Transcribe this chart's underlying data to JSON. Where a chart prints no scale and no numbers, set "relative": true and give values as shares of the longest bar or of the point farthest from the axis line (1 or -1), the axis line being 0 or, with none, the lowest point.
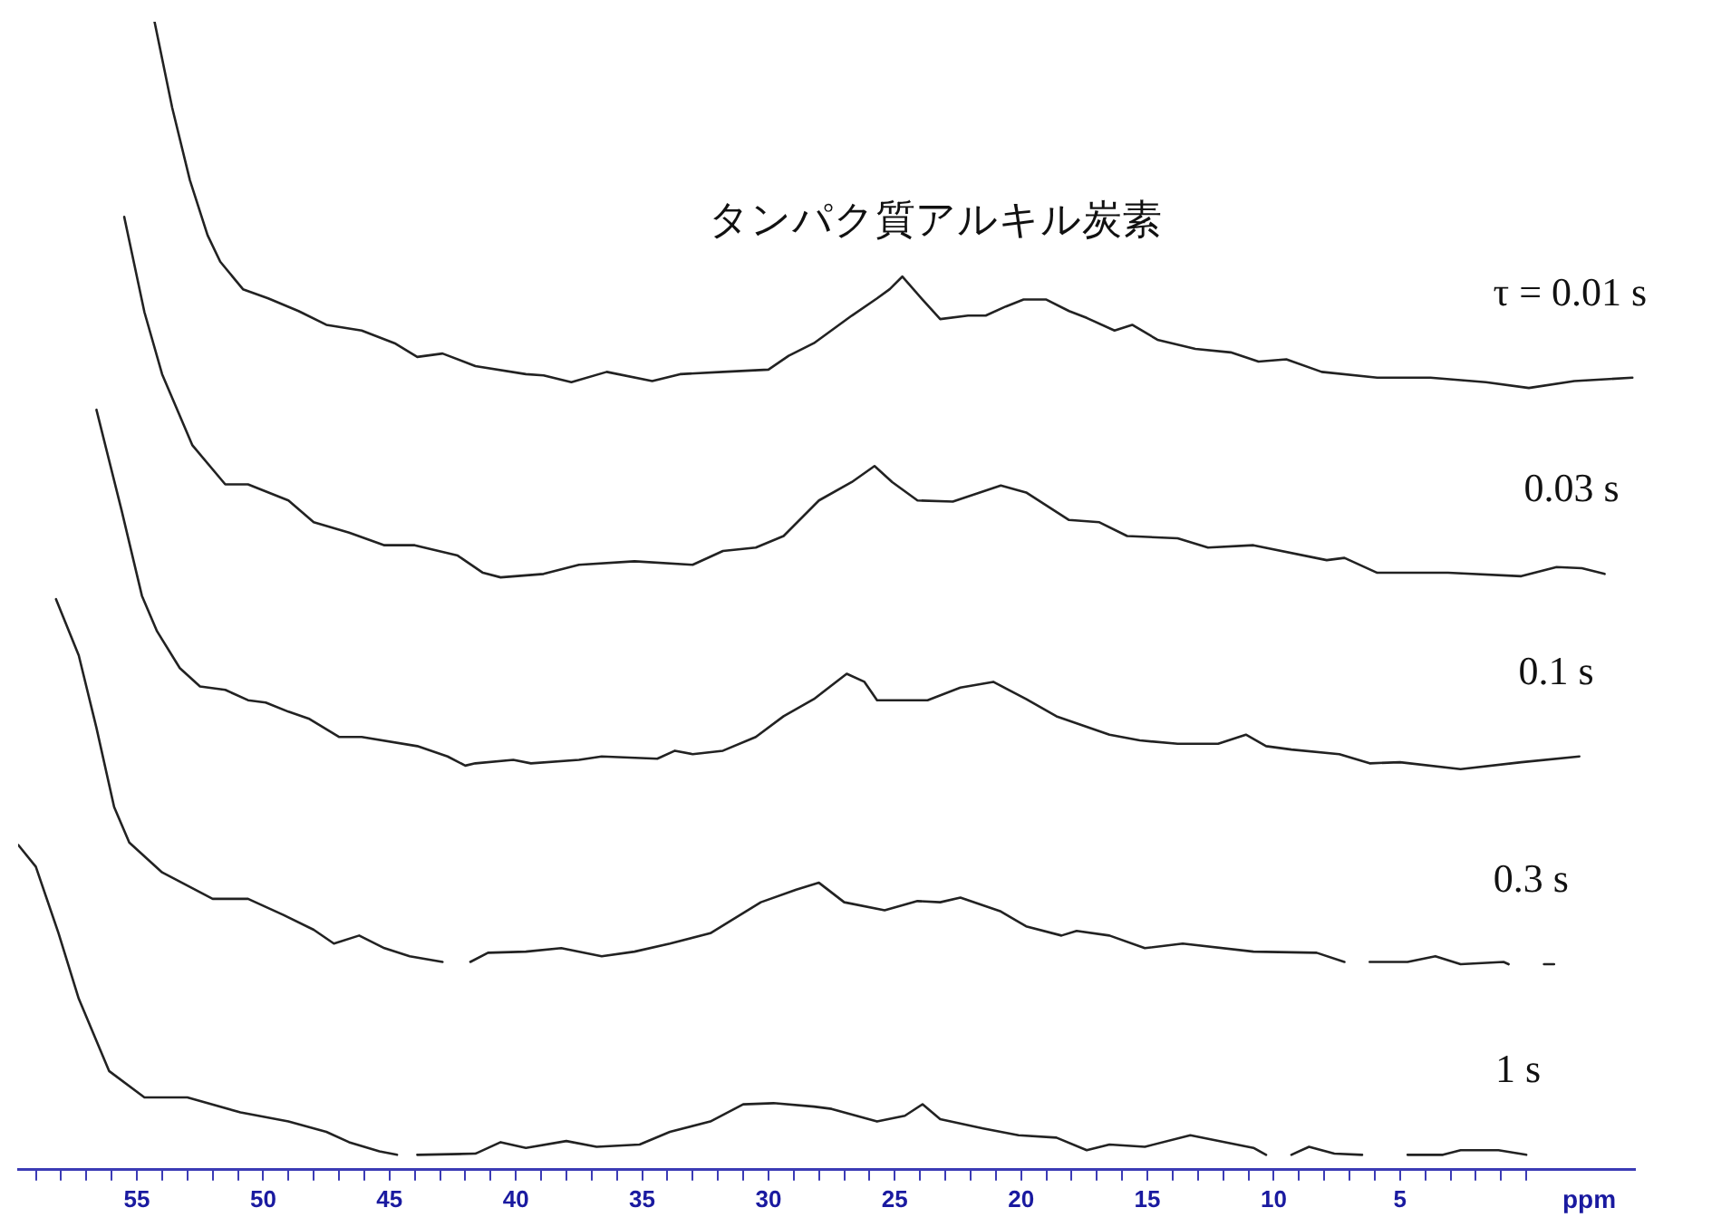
{
  "chart_data": {
    "type": "line",
    "relative": true,
    "xlabel": "ppm",
    "xlim": [
      59.7,
      -4.3
    ],
    "xticks": [
      {
        "value": 59,
        "label": null
      },
      {
        "value": 58,
        "label": null
      },
      {
        "value": 57,
        "label": null
      },
      {
        "value": 56,
        "label": null
      },
      55,
      {
        "value": 54,
        "label": null
      },
      {
        "value": 53,
        "label": null
      },
      {
        "value": 52,
        "label": null
      },
      {
        "value": 51,
        "label": null
      },
      50,
      {
        "value": 49,
        "label": null
      },
      {
        "value": 48,
        "label": null
      },
      {
        "value": 47,
        "label": null
      },
      {
        "value": 46,
        "label": null
      },
      45,
      {
        "value": 44,
        "label": null
      },
      {
        "value": 43,
        "label": null
      },
      {
        "value": 42,
        "label": null
      },
      {
        "value": 41,
        "label": null
      },
      40,
      {
        "value": 39,
        "label": null
      },
      {
        "value": 38,
        "label": null
      },
      {
        "value": 37,
        "label": null
      },
      {
        "value": 36,
        "label": null
      },
      35,
      {
        "value": 34,
        "label": null
      },
      {
        "value": 33,
        "label": null
      },
      {
        "value": 32,
        "label": null
      },
      {
        "value": 31,
        "label": null
      },
      30,
      {
        "value": 29,
        "label": null
      },
      {
        "value": 28,
        "label": null
      },
      {
        "value": 27,
        "label": null
      },
      {
        "value": 26,
        "label": null
      },
      25,
      {
        "value": 24,
        "label": null
      },
      {
        "value": 23,
        "label": null
      },
      {
        "value": 22,
        "label": null
      },
      {
        "value": 21,
        "label": null
      },
      20,
      {
        "value": 19,
        "label": null
      },
      {
        "value": 18,
        "label": null
      },
      {
        "value": 17,
        "label": null
      },
      {
        "value": 16,
        "label": null
      },
      15,
      {
        "value": 14,
        "label": null
      },
      {
        "value": 13,
        "label": null
      },
      {
        "value": 12,
        "label": null
      },
      {
        "value": 11,
        "label": null
      },
      10,
      {
        "value": 9,
        "label": null
      },
      {
        "value": 8,
        "label": null
      },
      {
        "value": 7,
        "label": null
      },
      {
        "value": 6,
        "label": null
      },
      5,
      {
        "value": 4,
        "label": null
      },
      {
        "value": 3,
        "label": null
      },
      {
        "value": 2,
        "label": null
      },
      {
        "value": 1,
        "label": null
      },
      {
        "value": 0,
        "label": null
      }
    ],
    "annotations": [
      {
        "text": "タンパク質アルキル炭素",
        "x": 24.7,
        "y": 0.778
      }
    ],
    "series": [
      {
        "name": "τ = 0.01 s",
        "color": "#222222",
        "x": [
          54.3,
          53.6,
          52.9,
          52.2,
          51.7,
          50.8,
          49.8,
          48.6,
          47.5,
          46.1,
          44.8,
          43.9,
          42.9,
          41.6,
          39.6,
          38.9,
          37.8,
          36.4,
          34.6,
          33.5,
          31.8,
          30.0,
          29.2,
          28.2,
          26.7,
          25.7,
          25.2,
          24.7,
          23.9,
          23.2,
          22.1,
          21.4,
          20.6,
          19.9,
          19.0,
          18.1,
          17.4,
          16.3,
          15.6,
          14.6,
          13.1,
          11.7,
          10.6,
          9.5,
          8.1,
          5.9,
          3.8,
          1.6,
          -0.1,
          -1.9,
          -4.2
        ],
        "values": [
          1,
          0.925,
          0.862,
          0.814,
          0.791,
          0.767,
          0.759,
          0.748,
          0.736,
          0.731,
          0.72,
          0.708,
          0.711,
          0.7,
          0.693,
          0.692,
          0.686,
          0.695,
          0.687,
          0.693,
          0.695,
          0.697,
          0.709,
          0.72,
          0.744,
          0.759,
          0.767,
          0.778,
          0.758,
          0.741,
          0.744,
          0.744,
          0.752,
          0.758,
          0.758,
          0.748,
          0.742,
          0.731,
          0.736,
          0.723,
          0.715,
          0.712,
          0.704,
          0.706,
          0.695,
          0.69,
          0.69,
          0.686,
          0.681,
          0.687,
          0.69
        ]
      },
      {
        "name": "0.03 s",
        "color": "#222222",
        "x": [
          55.5,
          54.7,
          54.0,
          52.8,
          51.5,
          50.6,
          49.0,
          48.0,
          46.6,
          45.2,
          44.0,
          42.3,
          41.3,
          40.6,
          38.9,
          37.5,
          35.3,
          33.0,
          31.8,
          30.5,
          29.4,
          28.0,
          26.7,
          25.8,
          25.1,
          24.1,
          22.7,
          20.8,
          19.8,
          18.1,
          16.9,
          15.8,
          13.8,
          12.6,
          10.8,
          7.9,
          7.2,
          5.9,
          3.1,
          0.2,
          -1.2,
          -2.2,
          -3.1
        ],
        "values": [
          0.83,
          0.747,
          0.693,
          0.631,
          0.597,
          0.597,
          0.583,
          0.564,
          0.555,
          0.544,
          0.544,
          0.535,
          0.52,
          0.516,
          0.519,
          0.527,
          0.53,
          0.527,
          0.539,
          0.542,
          0.552,
          0.583,
          0.599,
          0.613,
          0.599,
          0.583,
          0.582,
          0.596,
          0.59,
          0.566,
          0.564,
          0.552,
          0.55,
          0.542,
          0.544,
          0.531,
          0.533,
          0.52,
          0.52,
          0.517,
          0.525,
          0.524,
          0.519
        ]
      },
      {
        "name": "0.1 s",
        "color": "#222222",
        "x": [
          56.6,
          55.6,
          54.8,
          54.2,
          53.3,
          52.5,
          51.5,
          50.6,
          49.9,
          49.0,
          48.2,
          47.0,
          46.1,
          43.9,
          42.7,
          42.0,
          41.6,
          40.1,
          39.4,
          37.5,
          36.6,
          34.4,
          33.7,
          33.0,
          31.8,
          30.5,
          29.4,
          28.2,
          26.9,
          26.2,
          25.7,
          23.7,
          22.4,
          21.1,
          19.8,
          18.6,
          16.5,
          15.3,
          13.8,
          12.2,
          11.1,
          10.3,
          9.3,
          7.4,
          6.2,
          5.0,
          2.6,
          0.2,
          -2.1
        ],
        "values": [
          0.662,
          0.574,
          0.5,
          0.469,
          0.437,
          0.421,
          0.418,
          0.409,
          0.407,
          0.399,
          0.393,
          0.377,
          0.377,
          0.369,
          0.36,
          0.352,
          0.354,
          0.357,
          0.354,
          0.357,
          0.36,
          0.358,
          0.365,
          0.362,
          0.365,
          0.377,
          0.395,
          0.41,
          0.432,
          0.425,
          0.409,
          0.409,
          0.42,
          0.425,
          0.41,
          0.395,
          0.379,
          0.374,
          0.371,
          0.371,
          0.379,
          0.369,
          0.366,
          0.362,
          0.354,
          0.355,
          0.349,
          0.355,
          0.36
        ]
      },
      {
        "name": "0.3 s",
        "color": "#222222",
        "x": [
          58.2,
          57.3,
          56.6,
          55.9,
          55.3,
          54.0,
          52.0,
          50.6,
          49.2,
          48.0,
          47.2,
          46.2,
          45.2,
          44.2,
          42.9,
          42.4,
          41.8,
          41.1,
          39.6,
          38.2,
          36.6,
          35.3,
          33.9,
          32.3,
          30.3,
          28.9,
          28.0,
          27.0,
          25.4,
          24.1,
          23.2,
          22.4,
          20.8,
          19.8,
          18.4,
          17.8,
          16.5,
          15.1,
          13.6,
          10.8,
          8.3,
          7.2,
          6.7,
          6.2,
          4.7,
          3.6,
          2.6,
          0.9,
          0.7,
          -0.1,
          -0.7,
          -1.1
        ],
        "values": [
          0.497,
          0.448,
          0.385,
          0.316,
          0.285,
          0.259,
          0.236,
          0.236,
          0.222,
          0.209,
          0.197,
          0.204,
          0.193,
          0.186,
          0.181,
          null,
          0.181,
          0.189,
          0.19,
          0.193,
          0.186,
          0.19,
          0.197,
          0.206,
          0.233,
          0.244,
          0.25,
          0.233,
          0.226,
          0.234,
          0.233,
          0.237,
          0.225,
          0.212,
          0.204,
          0.208,
          0.204,
          0.193,
          0.197,
          0.19,
          0.189,
          0.181,
          null,
          0.181,
          0.181,
          0.186,
          0.179,
          0.181,
          0.179,
          null,
          0.179,
          0.179
        ]
      },
      {
        "name": "1 s",
        "color": "#222222",
        "x": [
          59.7,
          59.0,
          58.1,
          57.3,
          56.1,
          54.7,
          53.0,
          50.9,
          49.0,
          47.5,
          46.6,
          45.4,
          44.7,
          44.3,
          43.9,
          41.6,
          40.6,
          39.6,
          38.0,
          36.8,
          35.1,
          33.9,
          32.3,
          31.0,
          29.8,
          28.2,
          27.5,
          25.7,
          24.6,
          23.9,
          23.2,
          21.5,
          20.1,
          18.6,
          17.4,
          16.5,
          15.1,
          13.3,
          10.8,
          10.3,
          9.8,
          9.3,
          8.6,
          7.6,
          6.5,
          5.6,
          4.7,
          3.3,
          2.6,
          1.1,
          0.0
        ],
        "values": [
          0.283,
          0.264,
          0.206,
          0.149,
          0.086,
          0.063,
          0.063,
          0.05,
          0.042,
          0.033,
          0.024,
          0.016,
          0.013,
          null,
          0.013,
          0.014,
          0.024,
          0.019,
          0.025,
          0.02,
          0.022,
          0.033,
          0.042,
          0.057,
          0.058,
          0.055,
          0.053,
          0.042,
          0.047,
          0.057,
          0.044,
          0.036,
          0.03,
          0.028,
          0.017,
          0.022,
          0.02,
          0.03,
          0.019,
          0.013,
          null,
          0.013,
          0.02,
          0.014,
          0.013,
          null,
          0.013,
          0.013,
          0.017,
          0.017,
          0.013
        ]
      }
    ]
  }
}
